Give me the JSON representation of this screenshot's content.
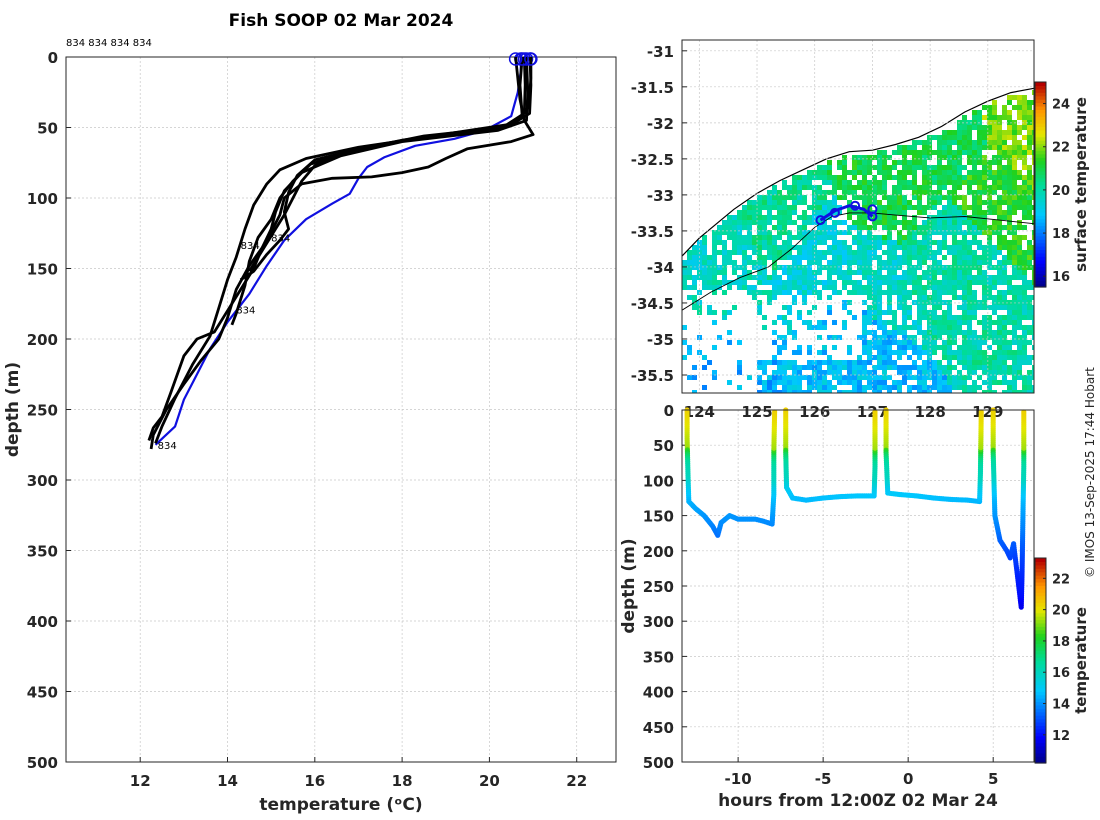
{
  "title": "Fish SOOP 02 Mar 2024",
  "credit": "© IMOS 13-Sep-2025 17:44 Hobart",
  "top_labels": "834 834 834 834",
  "colors": {
    "profile": "#000000",
    "latest": "#1010e0",
    "axis": "#262626",
    "grid": "#c8c8c8"
  },
  "chart_data": [
    {
      "type": "line",
      "id": "profiles",
      "xlabel": "temperature (°C)",
      "ylabel": "depth (m)",
      "xlim": [
        10.3,
        22.9
      ],
      "ylim": [
        500,
        0
      ],
      "xticks": [
        12,
        14,
        16,
        18,
        20,
        22
      ],
      "yticks": [
        0,
        50,
        100,
        150,
        200,
        250,
        300,
        350,
        400,
        450,
        500
      ],
      "profile_labels": [
        {
          "text": "834",
          "t": 14.3,
          "d": 136
        },
        {
          "text": "834",
          "t": 15.0,
          "d": 131
        },
        {
          "text": "834",
          "t": 14.2,
          "d": 182
        },
        {
          "text": "834",
          "t": 12.4,
          "d": 278
        }
      ],
      "series": [
        {
          "name": "latest",
          "color": "#1010e0",
          "points": [
            [
              20.72,
              0
            ],
            [
              20.72,
              10
            ],
            [
              20.65,
              25
            ],
            [
              20.5,
              42
            ],
            [
              19.9,
              52
            ],
            [
              19.2,
              58
            ],
            [
              18.3,
              63
            ],
            [
              17.6,
              71
            ],
            [
              17.2,
              78
            ],
            [
              17.0,
              86
            ],
            [
              16.8,
              97
            ],
            [
              16.4,
              104
            ],
            [
              15.8,
              115
            ],
            [
              15.3,
              130
            ],
            [
              14.9,
              148
            ],
            [
              14.5,
              168
            ],
            [
              14.0,
              188
            ],
            [
              13.6,
              207
            ],
            [
              13.3,
              225
            ],
            [
              13.0,
              243
            ],
            [
              12.8,
              262
            ],
            [
              12.35,
              275
            ]
          ]
        },
        {
          "name": "p1",
          "color": "#000000",
          "points": [
            [
              20.93,
              0
            ],
            [
              20.95,
              20
            ],
            [
              20.92,
              40
            ],
            [
              20.5,
              48
            ],
            [
              19.0,
              55
            ],
            [
              17.0,
              64
            ],
            [
              15.8,
              72
            ],
            [
              15.2,
              80
            ],
            [
              14.9,
              90
            ],
            [
              14.6,
              105
            ],
            [
              14.4,
              122
            ],
            [
              14.2,
              142
            ],
            [
              14.0,
              158
            ],
            [
              13.8,
              178
            ],
            [
              13.6,
              198
            ],
            [
              13.2,
              218
            ],
            [
              12.8,
              242
            ],
            [
              12.5,
              262
            ],
            [
              12.35,
              274
            ]
          ]
        },
        {
          "name": "p2",
          "color": "#000000",
          "points": [
            [
              20.8,
              0
            ],
            [
              20.82,
              20
            ],
            [
              20.8,
              40
            ],
            [
              20.3,
              50
            ],
            [
              18.5,
              56
            ],
            [
              16.9,
              66
            ],
            [
              15.9,
              76
            ],
            [
              15.5,
              88
            ],
            [
              15.2,
              100
            ],
            [
              15.0,
              115
            ],
            [
              14.7,
              128
            ],
            [
              14.5,
              145
            ],
            [
              14.4,
              162
            ],
            [
              14.2,
              182
            ],
            [
              14.1,
              190
            ]
          ]
        },
        {
          "name": "p3",
          "color": "#000000",
          "points": [
            [
              20.85,
              0
            ],
            [
              20.88,
              25
            ],
            [
              20.85,
              45
            ],
            [
              20.2,
              52
            ],
            [
              18.0,
              60
            ],
            [
              16.6,
              70
            ],
            [
              15.7,
              82
            ],
            [
              15.3,
              95
            ],
            [
              15.1,
              110
            ],
            [
              15.0,
              122
            ],
            [
              14.8,
              135
            ],
            [
              14.6,
              150
            ],
            [
              14.3,
              165
            ],
            [
              14.0,
              180
            ],
            [
              13.7,
              195
            ],
            [
              13.3,
              200
            ],
            [
              13.0,
              212
            ],
            [
              12.7,
              238
            ],
            [
              12.5,
              255
            ],
            [
              12.3,
              263
            ],
            [
              12.2,
              272
            ]
          ]
        },
        {
          "name": "p4",
          "color": "#000000",
          "points": [
            [
              20.75,
              0
            ],
            [
              20.7,
              20
            ],
            [
              20.75,
              42
            ],
            [
              20.4,
              48
            ],
            [
              18.9,
              55
            ],
            [
              17.3,
              63
            ],
            [
              16.0,
              73
            ],
            [
              15.6,
              84
            ],
            [
              15.4,
              96
            ],
            [
              15.3,
              110
            ],
            [
              15.4,
              122
            ],
            [
              15.2,
              130
            ],
            [
              14.9,
              140
            ],
            [
              14.6,
              152
            ],
            [
              14.3,
              158
            ]
          ]
        },
        {
          "name": "p5",
          "color": "#000000",
          "points": [
            [
              20.6,
              0
            ],
            [
              20.7,
              30
            ],
            [
              20.8,
              45
            ],
            [
              21.0,
              55
            ],
            [
              20.5,
              60
            ],
            [
              19.5,
              65
            ],
            [
              19.0,
              72
            ],
            [
              18.6,
              78
            ],
            [
              18.0,
              82
            ],
            [
              17.3,
              85
            ],
            [
              16.4,
              86
            ],
            [
              15.7,
              90
            ],
            [
              15.3,
              100
            ],
            [
              15.2,
              112
            ],
            [
              15.0,
              124
            ],
            [
              14.8,
              135
            ],
            [
              14.5,
              148
            ],
            [
              14.2,
              165
            ],
            [
              14.0,
              185
            ],
            [
              13.8,
              200
            ],
            [
              13.4,
              215
            ],
            [
              13.0,
              232
            ],
            [
              12.6,
              250
            ],
            [
              12.3,
              268
            ],
            [
              12.25,
              278
            ]
          ]
        },
        {
          "name": "p6",
          "color": "#000000",
          "points": [
            [
              20.95,
              0
            ],
            [
              20.95,
              15
            ],
            [
              20.9,
              35
            ],
            [
              20.6,
              47
            ],
            [
              19.6,
              53
            ],
            [
              18.0,
              59
            ],
            [
              16.7,
              67
            ],
            [
              16.0,
              77
            ],
            [
              15.7,
              88
            ],
            [
              15.5,
              100
            ],
            [
              15.3,
              112
            ],
            [
              15.1,
              122
            ],
            [
              14.9,
              132
            ],
            [
              14.7,
              142
            ],
            [
              14.5,
              152
            ]
          ]
        }
      ]
    },
    {
      "type": "heatmap",
      "id": "sst_map",
      "colorbar_label": "surface temperature",
      "xlim": [
        123.7,
        129.8
      ],
      "ylim": [
        -35.75,
        -30.85
      ],
      "xticks": [
        124,
        125,
        126,
        127,
        128,
        129
      ],
      "yticks": [
        -31,
        -31.5,
        -32,
        -32.5,
        -33,
        -33.5,
        -34,
        -34.5,
        -35,
        -35.5
      ],
      "ytick_labels": [
        "-31",
        "-31.5",
        "-32",
        "-32.5",
        "-33",
        "-33.5",
        "-34",
        "-34.5",
        "-35",
        "-35.5"
      ],
      "clim": [
        15.5,
        25
      ],
      "cticks": [
        16,
        18,
        20,
        22,
        24
      ],
      "coastline": [
        [
          123.7,
          -33.85
        ],
        [
          124.0,
          -33.6
        ],
        [
          124.3,
          -33.4
        ],
        [
          124.6,
          -33.2
        ],
        [
          125.0,
          -32.98
        ],
        [
          125.4,
          -32.8
        ],
        [
          125.8,
          -32.65
        ],
        [
          126.2,
          -32.5
        ],
        [
          126.6,
          -32.4
        ],
        [
          127.0,
          -32.38
        ],
        [
          127.4,
          -32.3
        ],
        [
          127.8,
          -32.2
        ],
        [
          128.2,
          -32.05
        ],
        [
          128.6,
          -31.85
        ],
        [
          129.0,
          -31.7
        ],
        [
          129.4,
          -31.58
        ],
        [
          129.8,
          -31.52
        ]
      ],
      "shelf_edge": [
        [
          123.7,
          -34.6
        ],
        [
          124.2,
          -34.35
        ],
        [
          124.7,
          -34.15
        ],
        [
          125.2,
          -34.0
        ],
        [
          125.6,
          -33.75
        ],
        [
          126.0,
          -33.45
        ],
        [
          126.3,
          -33.3
        ],
        [
          126.6,
          -33.25
        ],
        [
          127.0,
          -33.25
        ],
        [
          127.4,
          -33.28
        ],
        [
          128.0,
          -33.32
        ],
        [
          128.6,
          -33.3
        ],
        [
          129.2,
          -33.35
        ],
        [
          129.8,
          -33.4
        ]
      ],
      "track": [
        [
          126.1,
          -33.35
        ],
        [
          126.35,
          -33.22
        ],
        [
          126.6,
          -33.15
        ],
        [
          126.85,
          -33.2
        ],
        [
          127.0,
          -33.3
        ]
      ],
      "stations": [
        [
          126.35,
          -33.25
        ],
        [
          126.7,
          -33.15
        ],
        [
          127.0,
          -33.2
        ],
        [
          127.0,
          -33.3
        ],
        [
          126.1,
          -33.35
        ]
      ],
      "sst_fields": [
        {
          "x": 124.0,
          "y": -33.6,
          "t": 19.6
        },
        {
          "x": 124.5,
          "y": -33.9,
          "t": 19.7
        },
        {
          "x": 125.3,
          "y": -33.4,
          "t": 20.2
        },
        {
          "x": 126.0,
          "y": -34.0,
          "t": 19.4
        },
        {
          "x": 127.0,
          "y": -34.2,
          "t": 19.6
        },
        {
          "x": 128.2,
          "y": -33.8,
          "t": 20.0
        },
        {
          "x": 129.0,
          "y": -32.8,
          "t": 21.3
        },
        {
          "x": 128.5,
          "y": -32.4,
          "t": 20.8
        },
        {
          "x": 127.4,
          "y": -33.0,
          "t": 21.0
        },
        {
          "x": 129.5,
          "y": -32.2,
          "t": 21.9
        },
        {
          "x": 126.6,
          "y": -35.0,
          "t": 18.8
        },
        {
          "x": 124.2,
          "y": -35.5,
          "t": 18.6
        }
      ]
    },
    {
      "type": "scatter",
      "id": "depth_time",
      "xlabel": "hours from 12:00Z 02 Mar 24",
      "ylabel": "depth (m)",
      "colorbar_label": "temperature",
      "xlim": [
        -13.3,
        7.4
      ],
      "ylim": [
        500,
        0
      ],
      "xticks": [
        -10,
        -5,
        0,
        5
      ],
      "yticks": [
        0,
        50,
        100,
        150,
        200,
        250,
        300,
        350,
        400,
        450,
        500
      ],
      "clim": [
        10.2,
        23.3
      ],
      "cticks": [
        12,
        14,
        16,
        18,
        20,
        22
      ],
      "dives": [
        {
          "name": "dive1",
          "points": [
            [
              -13.0,
              0
            ],
            [
              -13.0,
              40
            ],
            [
              -12.95,
              90
            ],
            [
              -12.9,
              130
            ],
            [
              -12.5,
              140
            ],
            [
              -12.0,
              150
            ],
            [
              -11.5,
              165
            ],
            [
              -11.2,
              178
            ],
            [
              -11.0,
              160
            ],
            [
              -10.5,
              150
            ],
            [
              -10.0,
              155
            ],
            [
              -9.0,
              155
            ],
            [
              -8.5,
              158
            ],
            [
              -8.0,
              162
            ],
            [
              -7.9,
              120
            ],
            [
              -7.9,
              60
            ],
            [
              -7.85,
              0
            ]
          ]
        },
        {
          "name": "dive2",
          "points": [
            [
              -7.2,
              0
            ],
            [
              -7.2,
              60
            ],
            [
              -7.15,
              110
            ],
            [
              -6.8,
              125
            ],
            [
              -6.0,
              128
            ],
            [
              -5.0,
              125
            ],
            [
              -4.0,
              123
            ],
            [
              -3.0,
              122
            ],
            [
              -2.0,
              122
            ],
            [
              -1.95,
              80
            ],
            [
              -1.95,
              0
            ]
          ]
        },
        {
          "name": "dive3",
          "points": [
            [
              -1.3,
              0
            ],
            [
              -1.3,
              60
            ],
            [
              -1.2,
              118
            ],
            [
              -0.5,
              120
            ],
            [
              0.5,
              122
            ],
            [
              1.5,
              125
            ],
            [
              2.5,
              127
            ],
            [
              3.5,
              128
            ],
            [
              4.2,
              130
            ],
            [
              4.25,
              90
            ],
            [
              4.3,
              0
            ]
          ]
        },
        {
          "name": "dive4",
          "points": [
            [
              5.0,
              0
            ],
            [
              5.0,
              60
            ],
            [
              5.1,
              150
            ],
            [
              5.4,
              185
            ],
            [
              5.8,
              200
            ],
            [
              6.0,
              210
            ],
            [
              6.2,
              190
            ],
            [
              6.4,
              230
            ],
            [
              6.6,
              270
            ],
            [
              6.65,
              280
            ],
            [
              6.7,
              230
            ],
            [
              6.75,
              150
            ],
            [
              6.8,
              80
            ],
            [
              6.8,
              0
            ]
          ]
        }
      ]
    }
  ]
}
